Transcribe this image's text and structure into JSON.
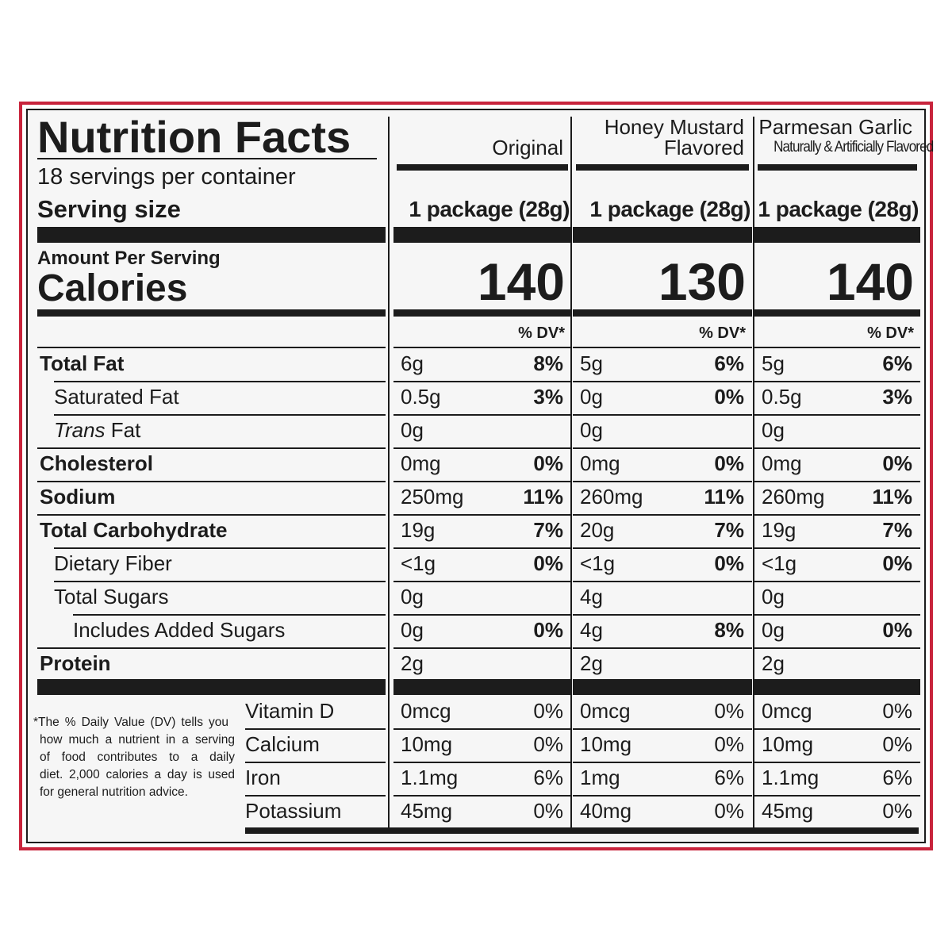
{
  "label": {
    "title": "Nutrition Facts",
    "servings_per_container": "18 servings per container",
    "serving_size_label": "Serving size",
    "amount_per_serving": "Amount Per Serving",
    "calories_label": "Calories",
    "dv_header": "% DV*",
    "footnote": [
      "*The % Daily Value (DV) tells you",
      "how much a nutrient in a serving",
      "of food contributes to a daily",
      "diet. 2,000 calories a day is used",
      "for general nutrition advice."
    ],
    "border_color": "#c8243c",
    "ink_color": "#1c1c1c"
  },
  "products": [
    {
      "name_line1": "",
      "name_line2": "Original",
      "serving_size": "1 package (28g)",
      "calories": "140"
    },
    {
      "name_line1": "Honey Mustard",
      "name_line2": "Flavored",
      "serving_size": "1 package (28g)",
      "calories": "130"
    },
    {
      "name_line1": "Parmesan Garlic",
      "name_line2": "Naturally & Artificially Flavored",
      "serving_size": "1 package (28g)",
      "calories": "140"
    }
  ],
  "nutrients": [
    {
      "label": "Total Fat",
      "values": [
        [
          "6g",
          "8%"
        ],
        [
          "5g",
          "6%"
        ],
        [
          "5g",
          "6%"
        ]
      ]
    },
    {
      "label": "Saturated Fat",
      "values": [
        [
          "0.5g",
          "3%"
        ],
        [
          "0g",
          "0%"
        ],
        [
          "0.5g",
          "3%"
        ]
      ]
    },
    {
      "label_italic": "Trans",
      "label": " Fat",
      "values": [
        [
          "0g",
          ""
        ],
        [
          "0g",
          ""
        ],
        [
          "0g",
          ""
        ]
      ]
    },
    {
      "label": "Cholesterol",
      "values": [
        [
          "0mg",
          "0%"
        ],
        [
          "0mg",
          "0%"
        ],
        [
          "0mg",
          "0%"
        ]
      ]
    },
    {
      "label": "Sodium",
      "values": [
        [
          "250mg",
          "11%"
        ],
        [
          "260mg",
          "11%"
        ],
        [
          "260mg",
          "11%"
        ]
      ]
    },
    {
      "label": "Total Carbohydrate",
      "values": [
        [
          "19g",
          "7%"
        ],
        [
          "20g",
          "7%"
        ],
        [
          "19g",
          "7%"
        ]
      ]
    },
    {
      "label": "Dietary Fiber",
      "values": [
        [
          "<1g",
          "0%"
        ],
        [
          "<1g",
          "0%"
        ],
        [
          "<1g",
          "0%"
        ]
      ]
    },
    {
      "label": "Total Sugars",
      "values": [
        [
          "0g",
          ""
        ],
        [
          "4g",
          ""
        ],
        [
          "0g",
          ""
        ]
      ]
    },
    {
      "label": "Includes Added Sugars",
      "values": [
        [
          "0g",
          "0%"
        ],
        [
          "4g",
          "8%"
        ],
        [
          "0g",
          "0%"
        ]
      ]
    },
    {
      "label": "Protein",
      "values": [
        [
          "2g",
          ""
        ],
        [
          "2g",
          ""
        ],
        [
          "2g",
          ""
        ]
      ]
    }
  ],
  "vitamins": [
    {
      "label": "Vitamin D",
      "values": [
        [
          "0mcg",
          "0%"
        ],
        [
          "0mcg",
          "0%"
        ],
        [
          "0mcg",
          "0%"
        ]
      ]
    },
    {
      "label": "Calcium",
      "values": [
        [
          "10mg",
          "0%"
        ],
        [
          "10mg",
          "0%"
        ],
        [
          "10mg",
          "0%"
        ]
      ]
    },
    {
      "label": "Iron",
      "values": [
        [
          "1.1mg",
          "6%"
        ],
        [
          "1mg",
          "6%"
        ],
        [
          "1.1mg",
          "6%"
        ]
      ]
    },
    {
      "label": "Potassium",
      "values": [
        [
          "45mg",
          "0%"
        ],
        [
          "40mg",
          "0%"
        ],
        [
          "45mg",
          "0%"
        ]
      ]
    }
  ]
}
